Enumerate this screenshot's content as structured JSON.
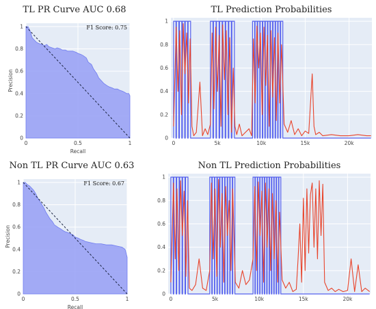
{
  "chart_data": [
    {
      "type": "area",
      "title": "TL PR Curve AUC 0.68",
      "xlabel": "Recall",
      "ylabel": "Precision",
      "xlim": [
        0,
        1
      ],
      "ylim": [
        0,
        1.03
      ],
      "x_ticks": [
        "0",
        "0.5",
        "1"
      ],
      "y_ticks": [
        "0",
        "0.2",
        "0.4",
        "0.6",
        "0.8",
        "1"
      ],
      "annotation": "F1 Score: 0.75",
      "fill_color": "#9aa3f5",
      "diagonal": true,
      "series": [
        {
          "x": [
            0,
            0.01,
            0.02,
            0.03,
            0.04,
            0.05,
            0.06,
            0.08,
            0.1,
            0.12,
            0.15,
            0.18,
            0.2,
            0.22,
            0.25,
            0.28,
            0.3,
            0.33,
            0.35,
            0.38,
            0.4,
            0.43,
            0.45,
            0.48,
            0.5,
            0.53,
            0.55,
            0.58,
            0.6,
            0.63,
            0.65,
            0.68,
            0.7,
            0.72,
            0.75,
            0.78,
            0.8,
            0.83,
            0.85,
            0.88,
            0.9,
            0.93,
            0.95,
            0.97,
            0.99,
            1.0
          ],
          "y": [
            1.0,
            1.0,
            1.0,
            0.98,
            0.96,
            0.93,
            0.9,
            0.88,
            0.86,
            0.85,
            0.84,
            0.83,
            0.84,
            0.82,
            0.81,
            0.8,
            0.81,
            0.8,
            0.79,
            0.79,
            0.78,
            0.78,
            0.78,
            0.77,
            0.76,
            0.75,
            0.74,
            0.72,
            0.68,
            0.66,
            0.62,
            0.58,
            0.54,
            0.52,
            0.49,
            0.47,
            0.46,
            0.45,
            0.44,
            0.44,
            0.43,
            0.42,
            0.41,
            0.4,
            0.4,
            0.38
          ]
        }
      ]
    },
    {
      "type": "line",
      "title": "TL Prediction Probabilities",
      "xlim": [
        -300,
        22600
      ],
      "ylim": [
        0,
        1.03
      ],
      "x_ticks": [
        "0",
        "5k",
        "10k",
        "15k",
        "20k"
      ],
      "x_tick_values": [
        0,
        5000,
        10000,
        15000,
        20000
      ],
      "y_ticks": [
        "0",
        "0.2",
        "0.4",
        "0.6",
        "0.8",
        "1"
      ],
      "colors": [
        "#5560ee",
        "#e8432a"
      ],
      "label_series": {
        "segments": [
          [
            0,
            2000
          ],
          [
            4200,
            7000
          ],
          [
            9000,
            12500
          ]
        ],
        "pulses": [
          6,
          8,
          12
        ]
      },
      "prediction_series": {
        "x": [
          0,
          300,
          500,
          700,
          900,
          1100,
          1300,
          1500,
          1700,
          1900,
          2100,
          2300,
          2600,
          3000,
          3300,
          3600,
          3900,
          4200,
          4400,
          4600,
          4800,
          5000,
          5200,
          5400,
          5600,
          5800,
          6000,
          6200,
          6400,
          6600,
          6800,
          7000,
          7200,
          7500,
          7800,
          8200,
          8600,
          8900,
          9100,
          9300,
          9500,
          9700,
          9900,
          10100,
          10300,
          10500,
          10700,
          10900,
          11100,
          11300,
          11500,
          11700,
          11900,
          12100,
          12300,
          12600,
          13000,
          13400,
          13800,
          14200,
          14600,
          15000,
          15400,
          15800,
          16000,
          16200,
          16600,
          17000,
          18000,
          19000,
          20000,
          21000,
          22000,
          22500
        ],
        "y": [
          0.1,
          0.95,
          0.4,
          0.92,
          0.2,
          0.98,
          0.55,
          0.9,
          0.3,
          0.85,
          0.1,
          0.02,
          0.05,
          0.48,
          0.02,
          0.08,
          0.03,
          0.12,
          0.9,
          0.25,
          0.95,
          0.4,
          0.88,
          0.1,
          0.97,
          0.5,
          0.92,
          0.2,
          0.86,
          0.05,
          0.6,
          0.1,
          0.03,
          0.12,
          0.02,
          0.05,
          0.08,
          0.02,
          0.85,
          0.3,
          0.96,
          0.6,
          0.9,
          0.2,
          0.95,
          0.45,
          0.88,
          0.1,
          0.92,
          0.35,
          0.86,
          0.15,
          0.9,
          0.3,
          0.8,
          0.12,
          0.05,
          0.15,
          0.03,
          0.08,
          0.02,
          0.06,
          0.04,
          0.55,
          0.1,
          0.03,
          0.05,
          0.02,
          0.03,
          0.02,
          0.02,
          0.03,
          0.02,
          0.02
        ]
      }
    },
    {
      "type": "area",
      "title": "Non TL PR Curve AUC 0.63",
      "xlabel": "Recall",
      "ylabel": "Precision",
      "xlim": [
        0,
        1
      ],
      "ylim": [
        0,
        1.03
      ],
      "x_ticks": [
        "0",
        "0.5",
        "1"
      ],
      "y_ticks": [
        "0",
        "0.2",
        "0.4",
        "0.6",
        "0.8",
        "1"
      ],
      "annotation": "F1 Score: 0.67",
      "fill_color": "#9aa3f5",
      "diagonal": true,
      "series": [
        {
          "x": [
            0,
            0.02,
            0.04,
            0.06,
            0.08,
            0.1,
            0.12,
            0.14,
            0.16,
            0.18,
            0.2,
            0.22,
            0.24,
            0.26,
            0.28,
            0.3,
            0.33,
            0.35,
            0.38,
            0.4,
            0.43,
            0.45,
            0.48,
            0.5,
            0.53,
            0.55,
            0.58,
            0.6,
            0.65,
            0.7,
            0.75,
            0.8,
            0.85,
            0.9,
            0.95,
            0.98,
            1.0
          ],
          "y": [
            1.0,
            1.0,
            0.98,
            0.97,
            0.95,
            0.93,
            0.9,
            0.86,
            0.83,
            0.8,
            0.77,
            0.73,
            0.7,
            0.67,
            0.65,
            0.62,
            0.6,
            0.59,
            0.57,
            0.56,
            0.55,
            0.54,
            0.53,
            0.51,
            0.5,
            0.49,
            0.48,
            0.47,
            0.46,
            0.45,
            0.45,
            0.44,
            0.44,
            0.43,
            0.42,
            0.4,
            0.33
          ]
        }
      ]
    },
    {
      "type": "line",
      "title": "Non TL Prediction Probabilities",
      "xlim": [
        -300,
        22600
      ],
      "ylim": [
        0,
        1.03
      ],
      "x_ticks": [
        "0",
        "5k",
        "10k",
        "15k",
        "20k"
      ],
      "x_tick_values": [
        0,
        5000,
        10000,
        15000,
        20000
      ],
      "y_ticks": [
        "0",
        "0.2",
        "0.4",
        "0.6",
        "0.8",
        "1"
      ],
      "colors": [
        "#5560ee",
        "#e8432a"
      ],
      "label_series": {
        "segments": [
          [
            0,
            2000
          ],
          [
            4400,
            7300
          ],
          [
            9300,
            12500
          ]
        ],
        "pulses": [
          6,
          10,
          12
        ]
      },
      "prediction_series": {
        "x": [
          0,
          300,
          500,
          700,
          900,
          1100,
          1300,
          1500,
          1700,
          1900,
          2100,
          2400,
          2800,
          3200,
          3600,
          4000,
          4400,
          4600,
          4800,
          5000,
          5200,
          5400,
          5600,
          5800,
          6000,
          6200,
          6400,
          6600,
          6800,
          7000,
          7300,
          7700,
          8100,
          8500,
          8900,
          9300,
          9500,
          9700,
          9900,
          10100,
          10300,
          10500,
          10700,
          10900,
          11100,
          11300,
          11500,
          11700,
          11900,
          12100,
          12300,
          12600,
          13000,
          13400,
          13800,
          14200,
          14400,
          14600,
          14800,
          15000,
          15200,
          15400,
          15600,
          15800,
          16000,
          16200,
          16400,
          16600,
          16800,
          17000,
          17200,
          17400,
          17800,
          18200,
          18600,
          19000,
          19500,
          20000,
          20400,
          20800,
          21200,
          21600,
          22000,
          22500
        ],
        "y": [
          0.1,
          0.95,
          0.3,
          0.9,
          0.2,
          0.97,
          0.5,
          0.88,
          0.15,
          0.8,
          0.05,
          0.03,
          0.08,
          0.3,
          0.05,
          0.03,
          0.2,
          0.95,
          0.3,
          0.9,
          0.15,
          0.98,
          0.4,
          0.86,
          0.1,
          0.92,
          0.5,
          0.8,
          0.2,
          0.9,
          0.1,
          0.05,
          0.2,
          0.08,
          0.12,
          0.3,
          0.92,
          0.2,
          0.96,
          0.5,
          0.88,
          0.1,
          0.95,
          0.4,
          0.9,
          0.2,
          0.86,
          0.3,
          0.8,
          0.1,
          0.7,
          0.12,
          0.05,
          0.1,
          0.02,
          0.04,
          0.3,
          0.6,
          0.1,
          0.82,
          0.2,
          0.9,
          0.35,
          0.85,
          0.95,
          0.4,
          0.9,
          0.3,
          0.97,
          0.5,
          0.94,
          0.1,
          0.03,
          0.05,
          0.02,
          0.04,
          0.02,
          0.03,
          0.3,
          0.02,
          0.25,
          0.02,
          0.05,
          0.02
        ]
      }
    }
  ]
}
